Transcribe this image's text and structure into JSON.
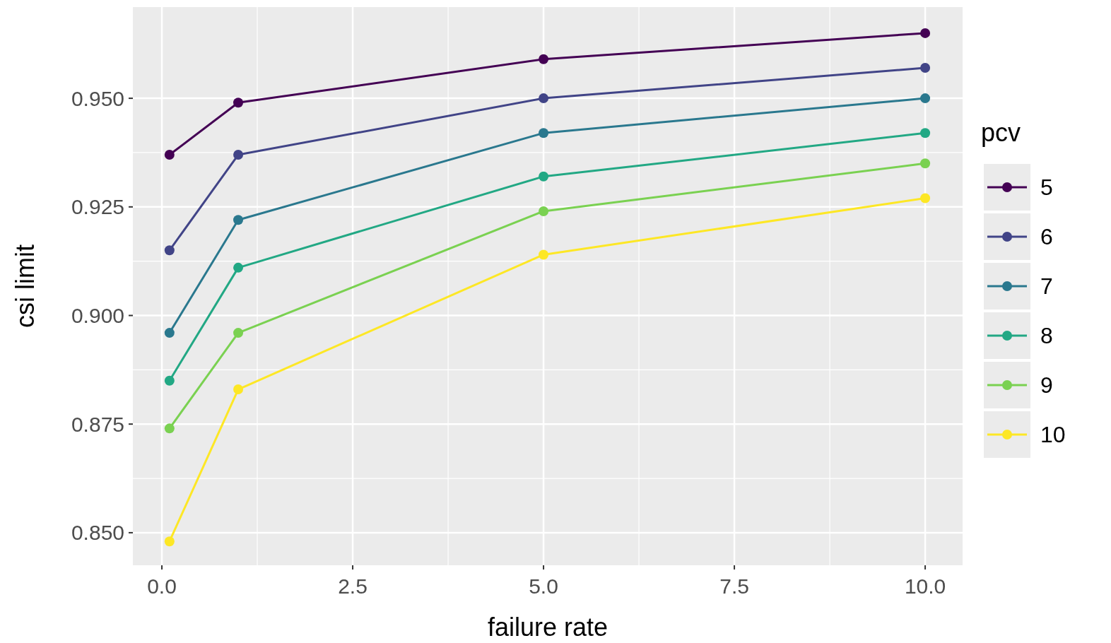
{
  "chart_data": {
    "type": "line",
    "xlabel": "failure rate",
    "ylabel": "csi limit",
    "legend_title": "pcv",
    "legend": "right",
    "grid": true,
    "marker": "circle",
    "line_style": "solid",
    "x": [
      0.1,
      1,
      5,
      10
    ],
    "xlim": [
      -0.38,
      10.49
    ],
    "ylim": [
      0.8425,
      0.971
    ],
    "xticks": [
      {
        "value": 0,
        "label": "0.0"
      },
      2.5,
      {
        "value": 5,
        "label": "5.0"
      },
      7.5,
      {
        "value": 10,
        "label": "10.0"
      }
    ],
    "yticks": [
      {
        "value": 0.85,
        "label": "0.850"
      },
      0.875,
      {
        "value": 0.9,
        "label": "0.900"
      },
      0.925,
      {
        "value": 0.95,
        "label": "0.950"
      }
    ],
    "series": [
      {
        "name": "5",
        "color": "#440154",
        "values": [
          0.937,
          0.949,
          0.959,
          0.965
        ]
      },
      {
        "name": "6",
        "color": "#414487",
        "values": [
          0.915,
          0.937,
          0.95,
          0.957
        ]
      },
      {
        "name": "7",
        "color": "#2a788e",
        "values": [
          0.896,
          0.922,
          0.942,
          0.95
        ]
      },
      {
        "name": "8",
        "color": "#22a884",
        "values": [
          0.885,
          0.911,
          0.932,
          0.942
        ]
      },
      {
        "name": "9",
        "color": "#7ad151",
        "values": [
          0.874,
          0.896,
          0.924,
          0.935
        ]
      },
      {
        "name": "10",
        "color": "#fde725",
        "values": [
          0.848,
          0.883,
          0.914,
          0.927
        ]
      }
    ]
  }
}
